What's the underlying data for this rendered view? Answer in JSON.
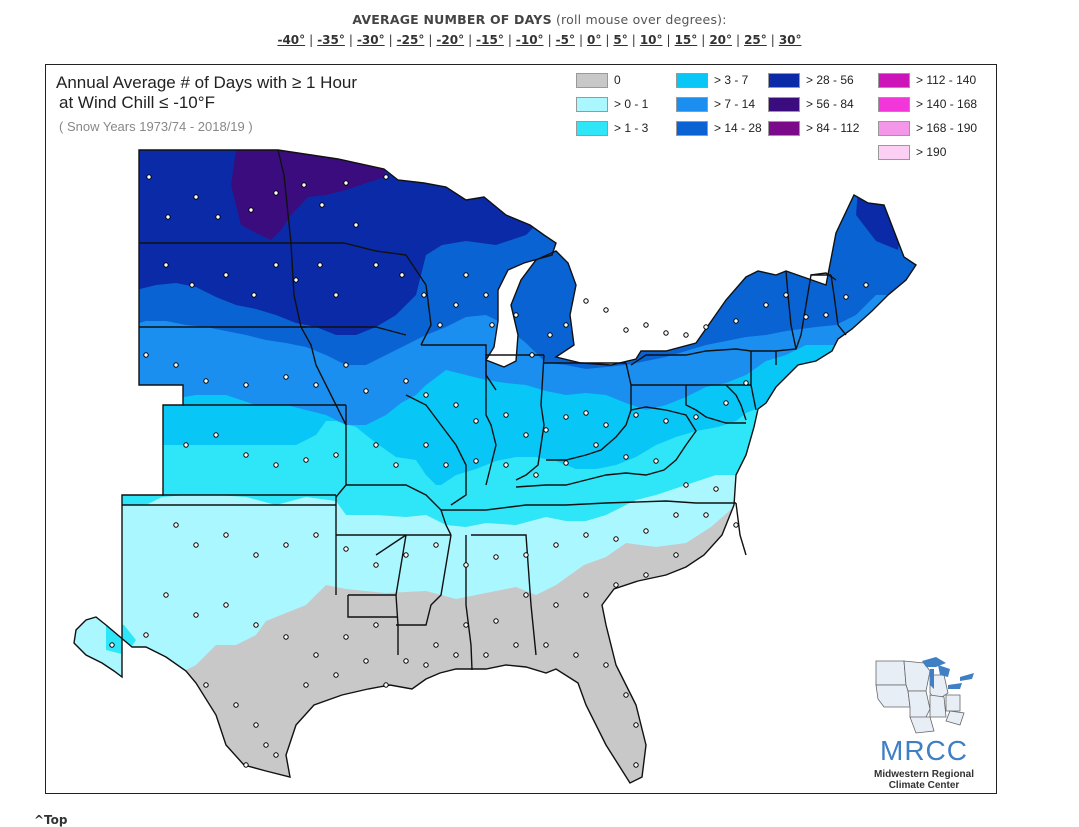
{
  "header": {
    "title_bold": "AVERAGE NUMBER OF DAYS",
    "title_rest": " (roll mouse over degrees):",
    "degree_links": [
      "-40°",
      "-35°",
      "-30°",
      "-25°",
      "-20°",
      "-15°",
      "-10°",
      "-5°",
      "0°",
      "5°",
      "10°",
      "15°",
      "20°",
      "25°",
      "30°"
    ]
  },
  "map": {
    "title_line1": "Annual Average # of Days with ≥ 1 Hour",
    "title_line2": "at Wind Chill ≤ -10°F",
    "subtitle": "( Snow Years 1973/74 - 2018/19 )",
    "legend": [
      {
        "label": "0",
        "color": "#c8c8c8"
      },
      {
        "label": "> 0 - 1",
        "color": "#aaf7ff"
      },
      {
        "label": "> 1 - 3",
        "color": "#2ee6f7"
      },
      {
        "label": "> 3 - 7",
        "color": "#08c6f5"
      },
      {
        "label": "> 7 - 14",
        "color": "#1a8ff0"
      },
      {
        "label": "> 14 - 28",
        "color": "#0a63d2"
      },
      {
        "label": "> 28 - 56",
        "color": "#0a2aa8"
      },
      {
        "label": "> 56 - 84",
        "color": "#3a0c7e"
      },
      {
        "label": "> 84 - 112",
        "color": "#7a0a8a"
      },
      {
        "label": "> 112 - 140",
        "color": "#cc14b8"
      },
      {
        "label": "> 140 - 168",
        "color": "#f236d9"
      },
      {
        "label": "> 168 - 190",
        "color": "#f597e8"
      },
      {
        "label": "> 190",
        "color": "#fcd0f5"
      }
    ]
  },
  "logo": {
    "name": "MRCC",
    "line1": "Midwestern Regional",
    "line2": "Climate Center"
  },
  "footer": {
    "top_link": "^Top"
  }
}
